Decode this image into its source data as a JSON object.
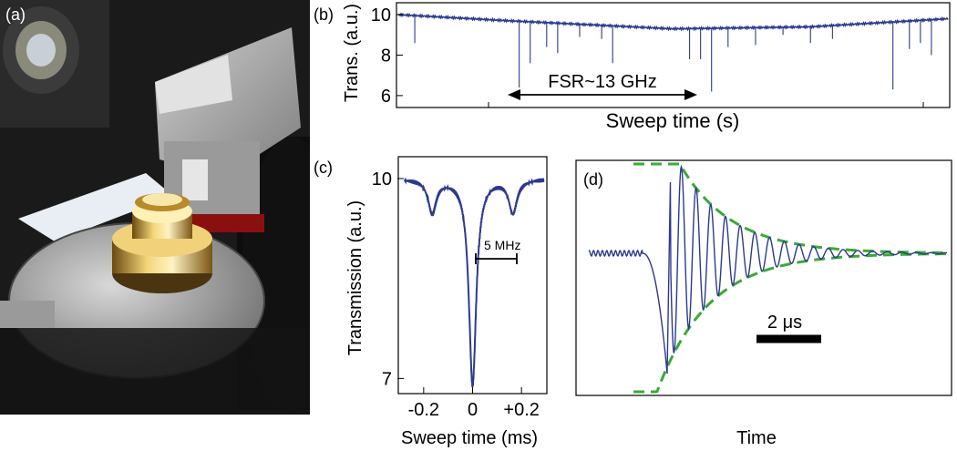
{
  "panels": {
    "a": {
      "label": "(a)"
    },
    "b": {
      "label": "(b)"
    },
    "c": {
      "label": "(c)"
    },
    "d": {
      "label": "(d)"
    }
  },
  "colors": {
    "trace": "#2b3a8f",
    "fit": "#3aaa35",
    "photo_bg": "#1a1a1a"
  },
  "icons": [
    "photo-resonator-setup"
  ],
  "chart_data": [
    {
      "panel": "b",
      "type": "line",
      "xlabel": "Sweep time (s)",
      "ylabel": "Trans. (a.u.)",
      "ylim": [
        5.5,
        10.5
      ],
      "yticks": [
        6,
        8,
        10
      ],
      "annotations": [
        {
          "text": "FSR~13 GHz"
        }
      ],
      "baseline": {
        "x": [
          0,
          0.2,
          0.5,
          0.75,
          1.0
        ],
        "y": [
          10.0,
          9.7,
          9.3,
          9.4,
          9.8
        ]
      },
      "dips": [
        {
          "x": 0.03,
          "y": 8.6
        },
        {
          "x": 0.22,
          "y": 6.4
        },
        {
          "x": 0.24,
          "y": 7.6
        },
        {
          "x": 0.27,
          "y": 8.4
        },
        {
          "x": 0.29,
          "y": 8.1
        },
        {
          "x": 0.33,
          "y": 8.9
        },
        {
          "x": 0.37,
          "y": 8.8
        },
        {
          "x": 0.39,
          "y": 7.6
        },
        {
          "x": 0.53,
          "y": 7.8
        },
        {
          "x": 0.55,
          "y": 7.8
        },
        {
          "x": 0.57,
          "y": 6.2
        },
        {
          "x": 0.6,
          "y": 8.4
        },
        {
          "x": 0.65,
          "y": 8.5
        },
        {
          "x": 0.7,
          "y": 9.0
        },
        {
          "x": 0.75,
          "y": 8.6
        },
        {
          "x": 0.79,
          "y": 8.8
        },
        {
          "x": 0.9,
          "y": 6.3
        },
        {
          "x": 0.93,
          "y": 8.3
        },
        {
          "x": 0.95,
          "y": 8.6
        },
        {
          "x": 0.97,
          "y": 8.0
        }
      ]
    },
    {
      "panel": "c",
      "type": "line",
      "xlabel": "Sweep time (ms)",
      "ylabel": "Transmission  (a.u.)",
      "xlim": [
        -0.3,
        0.3
      ],
      "ylim": [
        6.8,
        10.3
      ],
      "xticks": [
        -0.2,
        0,
        0.2
      ],
      "xtick_labels": [
        "-0.2",
        "0",
        "+0.2"
      ],
      "yticks": [
        7,
        10
      ],
      "annotations": [
        {
          "text": "5 MHz"
        }
      ],
      "series": [
        {
          "dips": [
            {
              "center": -0.165,
              "depth": 0.5,
              "width": 0.02
            },
            {
              "center": 0.0,
              "depth": 3.1,
              "width": 0.018
            },
            {
              "center": 0.165,
              "depth": 0.5,
              "width": 0.02
            }
          ],
          "baseline": 10.0
        }
      ]
    },
    {
      "panel": "d",
      "type": "line",
      "xlabel": "Time",
      "ylabel": "",
      "annotations": [
        {
          "text": "2 μs"
        }
      ],
      "series": [
        {
          "kind": "ringdown_trace",
          "oscillation_freq_per_us": 2.2,
          "decay_time_us": 1.6
        },
        {
          "kind": "envelope_fit",
          "style": "dashed"
        }
      ]
    }
  ]
}
